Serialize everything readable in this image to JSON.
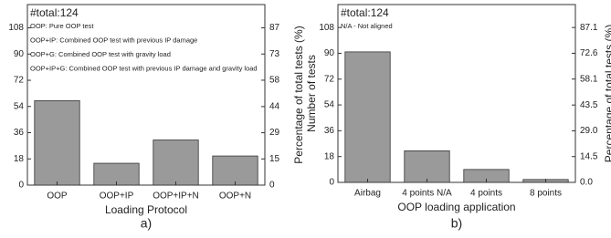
{
  "chart_data": [
    {
      "type": "bar",
      "title": "#total:124",
      "annotations": [
        "OOP: Pure OOP test",
        "OOP+IP:  Combined OOP test with previous IP damage",
        "OOP+G: Combined OOP test with gravity load",
        "OOP+IP+G: Combined OOP test with previous IP damage and gravity load"
      ],
      "categories": [
        "OOP",
        "OOP+IP",
        "OOP+IP+N",
        "OOP+N"
      ],
      "values": [
        58,
        15,
        31,
        20
      ],
      "color": "#9a9a9a",
      "xlabel": "Loading Protocol",
      "y2label": "Percentage of total tests (%)",
      "caption": "a)",
      "ylim": [
        0,
        124
      ],
      "yticks": [
        0,
        18,
        36,
        54,
        72,
        90,
        108
      ],
      "y2lim": [
        0,
        100
      ],
      "y2ticks": [
        0,
        {
          "value": 14.5,
          "label": "15"
        },
        {
          "value": 29.0,
          "label": "29"
        },
        {
          "value": 43.5,
          "label": "44"
        },
        {
          "value": 58.1,
          "label": "58"
        },
        {
          "value": 72.6,
          "label": "73"
        },
        {
          "value": 87.1,
          "label": "87"
        }
      ]
    },
    {
      "type": "bar",
      "title": "#total:124",
      "annotations": [
        "N/A - Not aligned"
      ],
      "categories": [
        "Airbag",
        "4 points N/A",
        "4 points",
        "8 points"
      ],
      "values": [
        91,
        22,
        9,
        2
      ],
      "color": "#9a9a9a",
      "xlabel": "OOP loading application",
      "ylabel": "Number of tests",
      "y2label": "Percentage of total tests (%)",
      "caption": "b)",
      "ylim": [
        0,
        124
      ],
      "yticks": [
        0,
        18,
        36,
        54,
        72,
        90,
        108
      ],
      "y2lim": [
        0,
        100
      ],
      "y2ticks": [
        {
          "value": 0,
          "label": "0.0"
        },
        14.5,
        {
          "value": 29.0,
          "label": "29.0"
        },
        43.5,
        58.1,
        72.6,
        87.1
      ]
    }
  ]
}
